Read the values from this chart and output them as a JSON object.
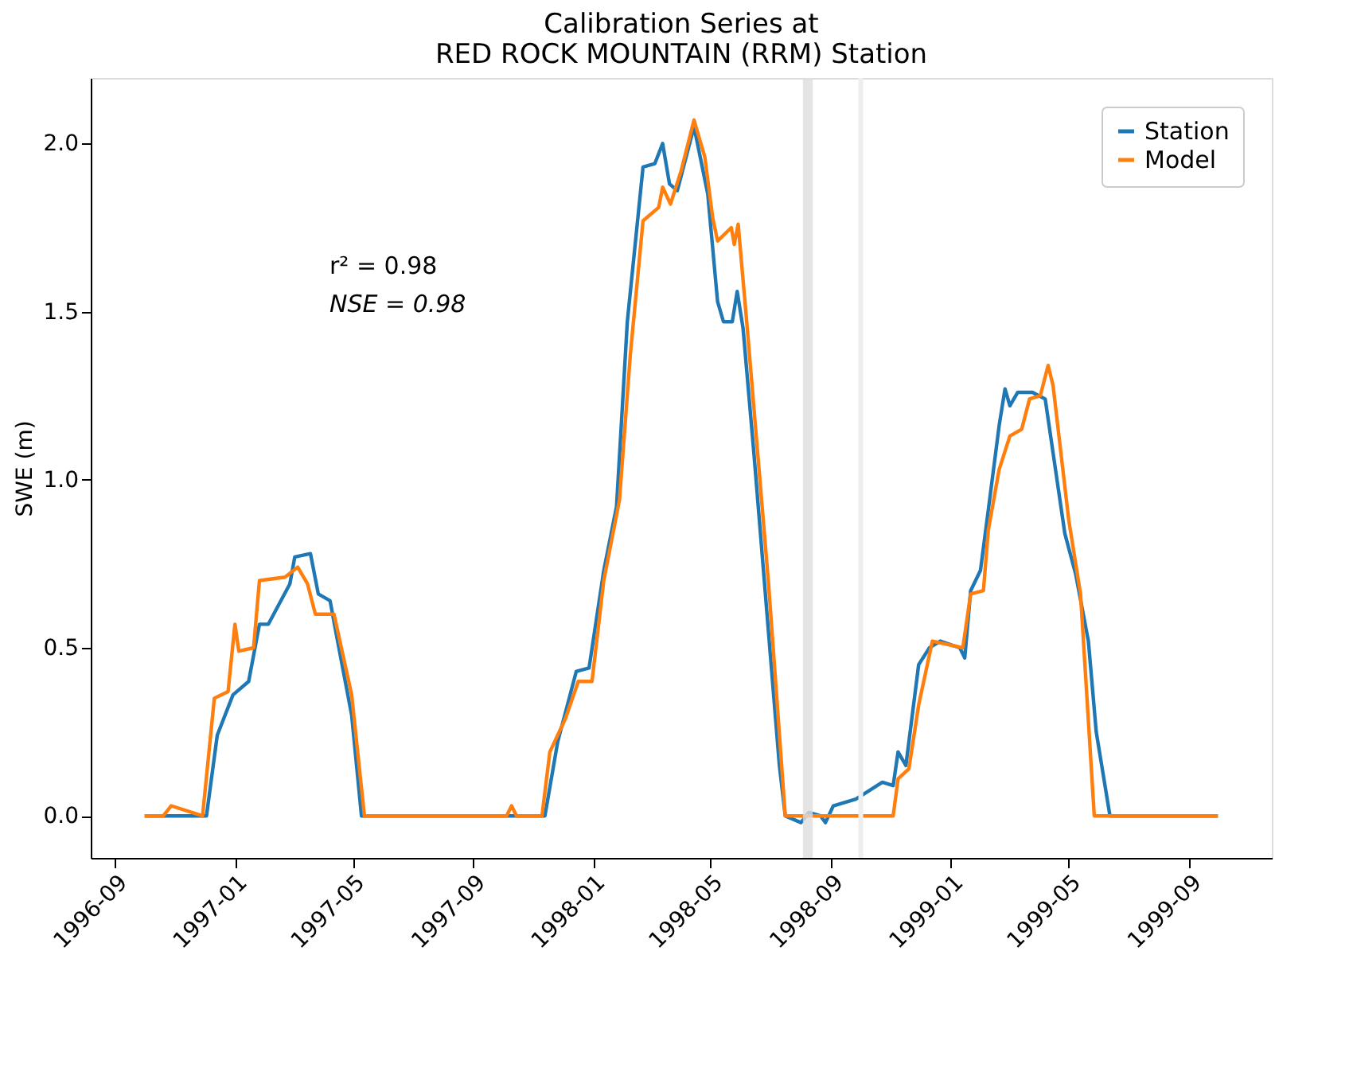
{
  "chart_data": {
    "type": "line",
    "title": "Calibration Series at\nRED ROCK MOUNTAIN (RRM) Station",
    "ylabel": "SWE (m)",
    "annotations": [
      "r² = 0.98",
      "NSE = 0.98"
    ],
    "xlim": [
      "1996-08-07",
      "1999-11-24"
    ],
    "xticks": [
      "1996-09",
      "1997-01",
      "1997-05",
      "1997-09",
      "1998-01",
      "1998-05",
      "1998-09",
      "1999-01",
      "1999-05",
      "1999-09"
    ],
    "ylim": [
      -0.125,
      2.195
    ],
    "yticks": [
      {
        "value": 0,
        "label": "0.0"
      },
      {
        "value": 0.5,
        "label": "0.5"
      },
      {
        "value": 1,
        "label": "1.0"
      },
      {
        "value": 1.5,
        "label": "1.5"
      },
      {
        "value": 2,
        "label": "2.0"
      }
    ],
    "grid": false,
    "legend": "top right",
    "line_style": "solid",
    "marker": "none",
    "bands": [
      {
        "axis": "x",
        "from": "1998-08-03",
        "to": "1998-08-13",
        "color": "#dddddd"
      }
    ],
    "ref_lines": [
      {
        "axis": "x",
        "value": "1998-10-01",
        "color": "#eeeeee"
      }
    ],
    "series": [
      {
        "name": "Station",
        "color": "#1f77b4",
        "x": [
          "1996-10-01",
          "1996-12-03",
          "1996-12-14",
          "1996-12-30",
          "1997-01-15",
          "1997-01-26",
          "1997-02-04",
          "1997-02-26",
          "1997-03-03",
          "1997-03-19",
          "1997-03-27",
          "1997-04-08",
          "1997-04-15",
          "1997-04-30",
          "1997-05-10",
          "1997-11-13",
          "1997-11-26",
          "1997-12-15",
          "1997-12-28",
          "1998-01-12",
          "1998-01-25",
          "1998-02-05",
          "1998-02-21",
          "1998-03-05",
          "1998-03-13",
          "1998-03-20",
          "1998-03-28",
          "1998-04-14",
          "1998-04-28",
          "1998-05-08",
          "1998-05-14",
          "1998-05-23",
          "1998-05-28",
          "1998-06-03",
          "1998-06-14",
          "1998-07-10",
          "1998-07-16",
          "1998-08-01",
          "1998-08-09",
          "1998-08-21",
          "1998-08-26",
          "1998-09-03",
          "1998-09-26",
          "1998-10-23",
          "1998-11-03",
          "1998-11-08",
          "1998-11-16",
          "1998-11-29",
          "1998-12-10",
          "1998-12-21",
          "1999-01-10",
          "1999-01-15",
          "1999-01-21",
          "1999-01-31",
          "1999-02-08",
          "1999-02-19",
          "1999-02-25",
          "1999-03-02",
          "1999-03-10",
          "1999-03-25",
          "1999-04-07",
          "1999-04-20",
          "1999-04-27",
          "1999-05-08",
          "1999-05-21",
          "1999-05-29",
          "1999-06-12",
          "1999-09-30"
        ],
        "values": [
          0,
          0,
          0.24,
          0.36,
          0.4,
          0.57,
          0.57,
          0.69,
          0.77,
          0.78,
          0.66,
          0.64,
          0.53,
          0.3,
          0,
          0,
          0.22,
          0.43,
          0.44,
          0.73,
          0.92,
          1.47,
          1.93,
          1.94,
          2.0,
          1.88,
          1.86,
          2.05,
          1.85,
          1.53,
          1.47,
          1.47,
          1.56,
          1.45,
          1.08,
          0.15,
          0,
          -0.02,
          0.01,
          0,
          -0.02,
          0.03,
          0.05,
          0.1,
          0.09,
          0.19,
          0.15,
          0.45,
          0.5,
          0.52,
          0.5,
          0.47,
          0.67,
          0.73,
          0.91,
          1.16,
          1.27,
          1.22,
          1.26,
          1.26,
          1.24,
          0.98,
          0.84,
          0.72,
          0.52,
          0.25,
          0,
          0
        ]
      },
      {
        "name": "Model",
        "color": "#ff7f0e",
        "x": [
          "1996-10-01",
          "1996-10-20",
          "1996-10-28",
          "1996-11-29",
          "1996-12-11",
          "1996-12-25",
          "1997-01-01",
          "1997-01-05",
          "1997-01-20",
          "1997-01-26",
          "1997-02-21",
          "1997-03-06",
          "1997-03-16",
          "1997-03-24",
          "1997-04-12",
          "1997-04-30",
          "1997-05-13",
          "1997-10-05",
          "1997-10-10",
          "1997-10-15",
          "1997-11-10",
          "1997-11-18",
          "1997-12-04",
          "1997-12-17",
          "1997-12-31",
          "1998-01-12",
          "1998-01-28",
          "1998-02-08",
          "1998-02-21",
          "1998-03-09",
          "1998-03-13",
          "1998-03-21",
          "1998-04-01",
          "1998-04-14",
          "1998-04-25",
          "1998-05-03",
          "1998-05-08",
          "1998-05-22",
          "1998-05-25",
          "1998-05-29",
          "1998-06-07",
          "1998-06-29",
          "1998-07-16",
          "1998-11-03",
          "1998-11-08",
          "1998-11-19",
          "1998-11-29",
          "1998-12-13",
          "1999-01-13",
          "1999-01-21",
          "1999-02-03",
          "1999-02-08",
          "1999-02-19",
          "1999-03-02",
          "1999-03-14",
          "1999-03-22",
          "1999-04-02",
          "1999-04-10",
          "1999-04-15",
          "1999-05-01",
          "1999-05-13",
          "1999-05-27",
          "1999-09-30"
        ],
        "values": [
          0,
          0,
          0.03,
          0,
          0.35,
          0.37,
          0.57,
          0.49,
          0.5,
          0.7,
          0.71,
          0.74,
          0.69,
          0.6,
          0.6,
          0.36,
          0,
          0,
          0.03,
          0,
          0,
          0.19,
          0.29,
          0.4,
          0.4,
          0.7,
          0.94,
          1.37,
          1.77,
          1.81,
          1.87,
          1.82,
          1.92,
          2.07,
          1.96,
          1.78,
          1.71,
          1.75,
          1.7,
          1.76,
          1.46,
          0.69,
          0,
          0,
          0.11,
          0.14,
          0.33,
          0.52,
          0.5,
          0.66,
          0.67,
          0.85,
          1.03,
          1.13,
          1.15,
          1.24,
          1.25,
          1.34,
          1.28,
          0.88,
          0.66,
          0,
          0
        ]
      }
    ]
  }
}
